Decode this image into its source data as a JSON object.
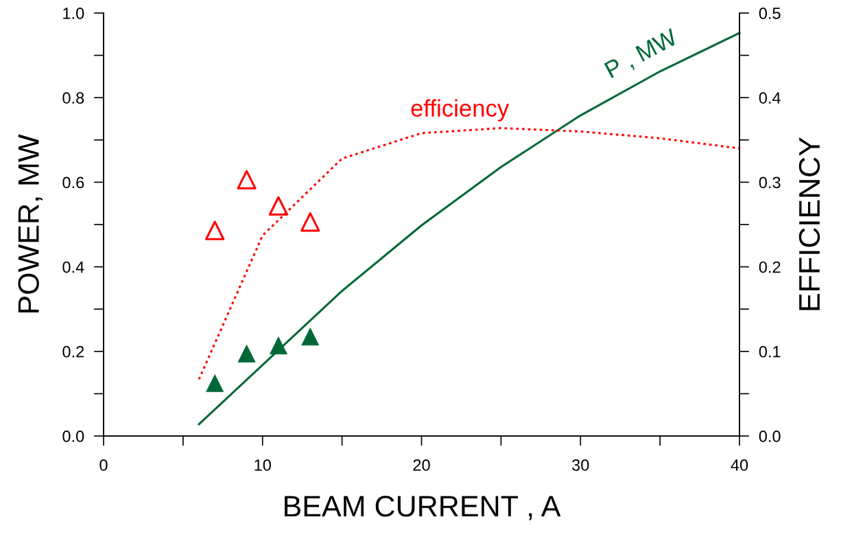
{
  "chart_data": {
    "type": "line",
    "xlabel": "BEAM CURRENT , A",
    "ylabel": "POWER, MW",
    "y2label": "EFFICIENCY",
    "xlim": [
      0,
      40
    ],
    "xticks": [
      0,
      {
        "value": 5,
        "label": null
      },
      10,
      {
        "value": 15,
        "label": null
      },
      20,
      {
        "value": 25,
        "label": null
      },
      30,
      {
        "value": 35,
        "label": null
      },
      40
    ],
    "ylim": [
      0,
      1
    ],
    "yticks": [
      {
        "value": 0,
        "label": "0.0"
      },
      {
        "value": 0.1,
        "label": null
      },
      {
        "value": 0.2,
        "label": "0.2"
      },
      {
        "value": 0.3,
        "label": null
      },
      {
        "value": 0.4,
        "label": "0.4"
      },
      {
        "value": 0.5,
        "label": null
      },
      {
        "value": 0.6,
        "label": "0.6"
      },
      {
        "value": 0.7,
        "label": null
      },
      {
        "value": 0.8,
        "label": "0.8"
      },
      {
        "value": 0.9,
        "label": null
      },
      {
        "value": 1,
        "label": "1.0"
      }
    ],
    "y2lim": [
      0,
      0.5
    ],
    "y2ticks": [
      {
        "value": 0,
        "label": "0.0"
      },
      {
        "value": 0.05,
        "label": null
      },
      0.1,
      {
        "value": 0.15,
        "label": null
      },
      0.2,
      {
        "value": 0.25,
        "label": null
      },
      0.3,
      {
        "value": 0.35,
        "label": null
      },
      0.4,
      {
        "value": 0.45,
        "label": null
      },
      0.5
    ],
    "grid": false,
    "legend": false,
    "series": [
      {
        "color": "#006837",
        "line_style": "solid",
        "marker": "none",
        "x": [
          6,
          15,
          20,
          25,
          30,
          35,
          40
        ],
        "values": [
          0.028,
          0.343,
          0.498,
          0.636,
          0.758,
          0.862,
          0.953
        ]
      },
      {
        "axis": "y2",
        "color": "#ff0000",
        "line_style": "dotted",
        "marker": "none",
        "x": [
          6,
          10,
          15,
          20,
          25,
          30,
          35,
          40
        ],
        "values": [
          0.067,
          0.237,
          0.328,
          0.358,
          0.364,
          0.36,
          0.352,
          0.34
        ]
      },
      {
        "type": "scatter",
        "color": "#006837",
        "marker": "triangle",
        "x": [
          7,
          9,
          11,
          13
        ],
        "values": [
          0.125,
          0.195,
          0.214,
          0.235
        ]
      },
      {
        "type": "scatter",
        "axis": "y2",
        "color": "#ff0000",
        "marker": "triangle",
        "x": [
          7,
          9,
          11,
          13
        ],
        "values": [
          0.243,
          0.303,
          0.272,
          0.253
        ]
      }
    ],
    "annotations": [
      "efficiency",
      "P , MW"
    ]
  }
}
